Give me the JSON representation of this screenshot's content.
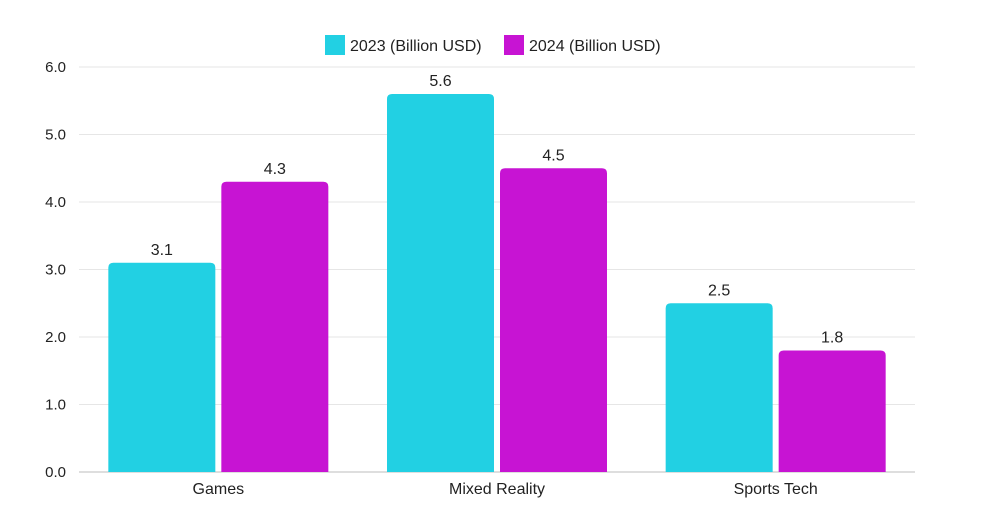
{
  "chart_data": {
    "type": "bar",
    "categories": [
      "Games",
      "Mixed Reality",
      "Sports Tech"
    ],
    "series": [
      {
        "name": "2023 (Billion USD)",
        "values": [
          3.1,
          5.6,
          2.5
        ],
        "color": "#22d0e3"
      },
      {
        "name": "2024 (Billion USD)",
        "values": [
          4.3,
          4.5,
          1.8
        ],
        "color": "#c714d3"
      }
    ],
    "ylim": [
      0,
      6
    ],
    "yticks": [
      "0.0",
      "1.0",
      "2.0",
      "3.0",
      "4.0",
      "5.0",
      "6.0"
    ],
    "grid": true,
    "legend_position": "top-center",
    "data_labels": true
  }
}
